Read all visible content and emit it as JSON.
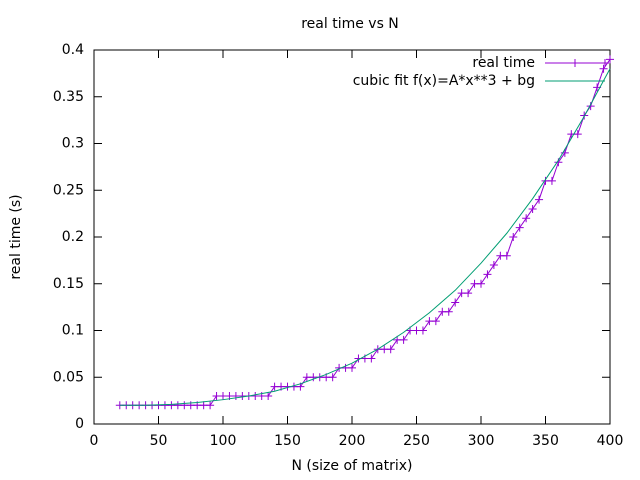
{
  "chart_data": {
    "type": "line",
    "title": "real time vs N",
    "xlabel": "N (size of matrix)",
    "ylabel": "real time (s)",
    "xlim": [
      0,
      400
    ],
    "ylim": [
      0,
      0.4
    ],
    "xticks": [
      0,
      50,
      100,
      150,
      200,
      250,
      300,
      350,
      400
    ],
    "yticks": [
      0,
      0.05,
      0.1,
      0.15,
      0.2,
      0.25,
      0.3,
      0.35,
      0.4
    ],
    "legend": "top-right",
    "series": [
      {
        "name": "real time",
        "color": "#9400d3",
        "marker": "+",
        "x": [
          20,
          25,
          30,
          35,
          40,
          45,
          50,
          55,
          60,
          65,
          70,
          75,
          80,
          85,
          90,
          95,
          100,
          105,
          110,
          115,
          120,
          125,
          130,
          135,
          140,
          145,
          150,
          155,
          160,
          165,
          170,
          175,
          180,
          185,
          190,
          195,
          200,
          205,
          210,
          215,
          220,
          225,
          230,
          235,
          240,
          245,
          250,
          255,
          260,
          265,
          270,
          275,
          280,
          285,
          290,
          295,
          300,
          305,
          310,
          315,
          320,
          325,
          330,
          335,
          340,
          345,
          350,
          355,
          360,
          365,
          370,
          375,
          380,
          385,
          390,
          395,
          400
        ],
        "values": [
          0.02,
          0.02,
          0.02,
          0.02,
          0.02,
          0.02,
          0.02,
          0.02,
          0.02,
          0.02,
          0.02,
          0.02,
          0.02,
          0.02,
          0.02,
          0.03,
          0.03,
          0.03,
          0.03,
          0.03,
          0.03,
          0.03,
          0.03,
          0.03,
          0.04,
          0.04,
          0.04,
          0.04,
          0.04,
          0.05,
          0.05,
          0.05,
          0.05,
          0.05,
          0.06,
          0.06,
          0.06,
          0.07,
          0.07,
          0.07,
          0.08,
          0.08,
          0.08,
          0.09,
          0.09,
          0.1,
          0.1,
          0.1,
          0.11,
          0.11,
          0.12,
          0.12,
          0.13,
          0.14,
          0.14,
          0.15,
          0.15,
          0.16,
          0.17,
          0.18,
          0.18,
          0.2,
          0.21,
          0.22,
          0.23,
          0.24,
          0.26,
          0.26,
          0.28,
          0.29,
          0.31,
          0.31,
          0.33,
          0.34,
          0.36,
          0.38,
          0.39
        ]
      },
      {
        "name": "cubic fit f(x)=A*x**3 + bg",
        "color": "#009e73",
        "x": [
          20,
          40,
          60,
          80,
          100,
          120,
          140,
          160,
          180,
          200,
          220,
          240,
          260,
          280,
          300,
          320,
          340,
          360,
          380,
          400
        ],
        "values": [
          0.02,
          0.02,
          0.021,
          0.023,
          0.026,
          0.03,
          0.035,
          0.043,
          0.053,
          0.065,
          0.08,
          0.098,
          0.119,
          0.143,
          0.172,
          0.204,
          0.241,
          0.282,
          0.329,
          0.38
        ]
      }
    ]
  }
}
